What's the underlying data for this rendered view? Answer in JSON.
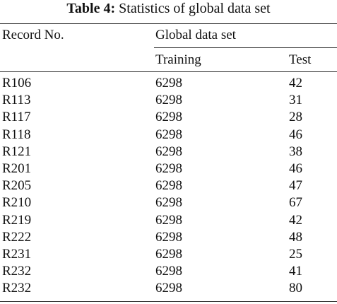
{
  "caption": {
    "label": "Table 4:",
    "text": "Statistics of global data set"
  },
  "table": {
    "header": {
      "record": "Record No.",
      "group": "Global data set",
      "training": "Training",
      "test": "Test"
    },
    "rows": [
      [
        "R106",
        6298,
        42
      ],
      [
        "R113",
        6298,
        31
      ],
      [
        "R117",
        6298,
        28
      ],
      [
        "R118",
        6298,
        46
      ],
      [
        "R121",
        6298,
        38
      ],
      [
        "R201",
        6298,
        46
      ],
      [
        "R205",
        6298,
        47
      ],
      [
        "R210",
        6298,
        67
      ],
      [
        "R219",
        6298,
        42
      ],
      [
        "R222",
        6298,
        48
      ],
      [
        "R231",
        6298,
        25
      ],
      [
        "R232",
        6298,
        41
      ],
      [
        "R232",
        6298,
        80
      ]
    ]
  }
}
